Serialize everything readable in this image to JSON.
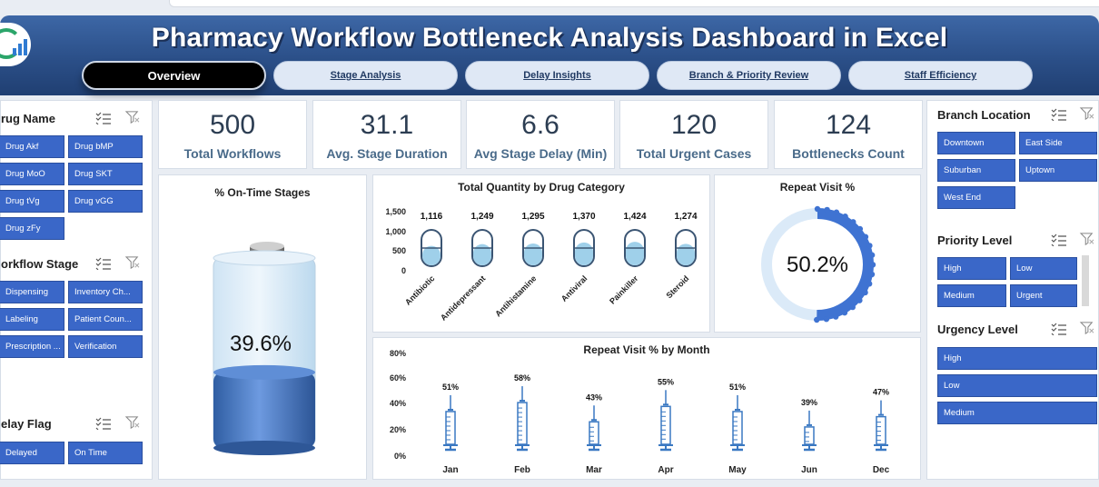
{
  "header": {
    "title": "Pharmacy Workflow Bottleneck Analysis Dashboard in Excel",
    "tabs": [
      {
        "label": "Overview",
        "active": true
      },
      {
        "label": "Stage Analysis",
        "active": false
      },
      {
        "label": "Delay Insights",
        "active": false
      },
      {
        "label": "Branch & Priority Review",
        "active": false
      },
      {
        "label": "Staff Efficiency",
        "active": false
      }
    ]
  },
  "left_slicers": {
    "drug_name": {
      "label": "rug Name",
      "items": [
        "Drug Akf",
        "Drug bMP",
        "Drug MoO",
        "Drug SKT",
        "Drug tVg",
        "Drug vGG",
        "Drug zFy"
      ]
    },
    "workflow_stage": {
      "label": "orkflow Stage",
      "items": [
        "Dispensing",
        "Inventory Ch...",
        "Labeling",
        "Patient Coun...",
        "Prescription ...",
        "Verification"
      ]
    },
    "delay_flag": {
      "label": "elay Flag",
      "items": [
        "Delayed",
        "On Time"
      ]
    }
  },
  "right_slicers": {
    "branch_location": {
      "label": "Branch Location",
      "items": [
        "Downtown",
        "East Side",
        "Suburban",
        "Uptown",
        "West End"
      ]
    },
    "priority_level": {
      "label": "Priority Level",
      "items": [
        "High",
        "Low",
        "Medium",
        "Urgent"
      ]
    },
    "urgency_level": {
      "label": "Urgency Level",
      "items": [
        "High",
        "Low",
        "Medium"
      ]
    }
  },
  "kpis": [
    {
      "value": "500",
      "label": "Total Workflows"
    },
    {
      "value": "31.1",
      "label": "Avg. Stage Duration"
    },
    {
      "value": "6.6",
      "label": "Avg Stage Delay (Min)"
    },
    {
      "value": "120",
      "label": "Total Urgent Cases"
    },
    {
      "value": "124",
      "label": "Bottlenecks Count"
    }
  ],
  "colors": {
    "accent": "#3a67c8",
    "header": "#2b4f88",
    "fill_light": "#a9d4ec",
    "fill_dark": "#3e6fb0",
    "ring": "#3f73d2"
  },
  "chart_data": [
    {
      "type": "gauge",
      "title": "% On-Time Stages",
      "value": 39.6,
      "display": "39.6%"
    },
    {
      "type": "bar",
      "title": "Total Quantity by Drug Category",
      "categories": [
        "Antibiotic",
        "Antidepressant",
        "Antihistamine",
        "Antiviral",
        "Painkiller",
        "Steroid"
      ],
      "values": [
        1116,
        1249,
        1295,
        1370,
        1424,
        1274
      ],
      "labels": [
        "1,116",
        "1,249",
        "1,295",
        "1,370",
        "1,424",
        "1,274"
      ],
      "yticks": [
        "1,500",
        "1,000",
        "500",
        "0"
      ],
      "ylim": [
        0,
        1500
      ]
    },
    {
      "type": "pie",
      "title": "Repeat Visit %",
      "value": 50.2,
      "display": "50.2%"
    },
    {
      "type": "bar",
      "title": "Repeat Visit % by Month",
      "categories": [
        "Jan",
        "Feb",
        "Mar",
        "Apr",
        "May",
        "Jun",
        "Dec"
      ],
      "values": [
        51,
        58,
        43,
        55,
        51,
        39,
        47
      ],
      "labels": [
        "51%",
        "58%",
        "43%",
        "55%",
        "51%",
        "39%",
        "47%"
      ],
      "yticks": [
        "80%",
        "60%",
        "40%",
        "20%",
        "0%"
      ],
      "ylim": [
        0,
        80
      ]
    }
  ]
}
